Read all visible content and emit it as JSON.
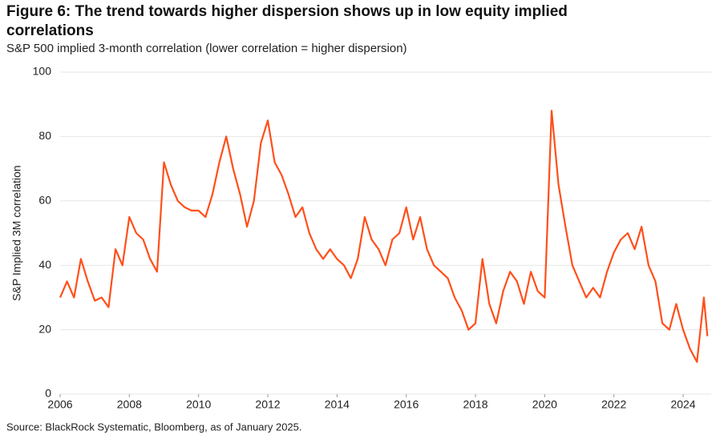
{
  "chart_data": {
    "type": "line",
    "title": "Figure 6: The trend towards higher dispersion shows up in low equity implied correlations",
    "subtitle": "S&P 500 implied 3-month correlation (lower correlation = higher dispersion)",
    "y_label": "S&P Implied 3M correlation",
    "source": "Source: BlackRock Systematic, Bloomberg, as of January 2025.",
    "x": [
      2006.0,
      2006.2,
      2006.4,
      2006.6,
      2006.8,
      2007.0,
      2007.2,
      2007.4,
      2007.6,
      2007.8,
      2008.0,
      2008.2,
      2008.4,
      2008.6,
      2008.8,
      2009.0,
      2009.2,
      2009.4,
      2009.6,
      2009.8,
      2010.0,
      2010.2,
      2010.4,
      2010.6,
      2010.8,
      2011.0,
      2011.2,
      2011.4,
      2011.6,
      2011.8,
      2012.0,
      2012.2,
      2012.4,
      2012.6,
      2012.8,
      2013.0,
      2013.2,
      2013.4,
      2013.6,
      2013.8,
      2014.0,
      2014.2,
      2014.4,
      2014.6,
      2014.8,
      2015.0,
      2015.2,
      2015.4,
      2015.6,
      2015.8,
      2016.0,
      2016.2,
      2016.4,
      2016.6,
      2016.8,
      2017.0,
      2017.2,
      2017.4,
      2017.6,
      2017.8,
      2018.0,
      2018.2,
      2018.4,
      2018.6,
      2018.8,
      2019.0,
      2019.2,
      2019.4,
      2019.6,
      2019.8,
      2020.0,
      2020.2,
      2020.4,
      2020.6,
      2020.8,
      2021.0,
      2021.2,
      2021.4,
      2021.6,
      2021.8,
      2022.0,
      2022.2,
      2022.4,
      2022.6,
      2022.8,
      2023.0,
      2023.2,
      2023.4,
      2023.6,
      2023.8,
      2024.0,
      2024.2,
      2024.4,
      2024.6,
      2024.7
    ],
    "series": [
      {
        "name": "S&P 500 implied 3-month correlation",
        "color": "#ff4f1a",
        "values": [
          30,
          35,
          30,
          42,
          35,
          29,
          30,
          27,
          45,
          40,
          55,
          50,
          48,
          42,
          38,
          72,
          65,
          60,
          58,
          57,
          57,
          55,
          62,
          72,
          80,
          70,
          62,
          52,
          60,
          78,
          85,
          72,
          68,
          62,
          55,
          58,
          50,
          45,
          42,
          45,
          42,
          40,
          36,
          42,
          55,
          48,
          45,
          40,
          48,
          50,
          58,
          48,
          55,
          45,
          40,
          38,
          36,
          30,
          26,
          20,
          22,
          42,
          28,
          22,
          32,
          38,
          35,
          28,
          38,
          32,
          30,
          88,
          65,
          52,
          40,
          35,
          30,
          33,
          30,
          38,
          44,
          48,
          50,
          45,
          52,
          40,
          35,
          22,
          20,
          28,
          20,
          14,
          10,
          30,
          18
        ]
      }
    ],
    "xlim": [
      2006,
      2024.81
    ],
    "xticks": [
      2006,
      2008,
      2010,
      2012,
      2014,
      2016,
      2018,
      2020,
      2022,
      2024
    ],
    "ylim": [
      0,
      100
    ],
    "yticks": [
      0,
      20,
      40,
      60,
      80,
      100
    ],
    "grid": true
  }
}
